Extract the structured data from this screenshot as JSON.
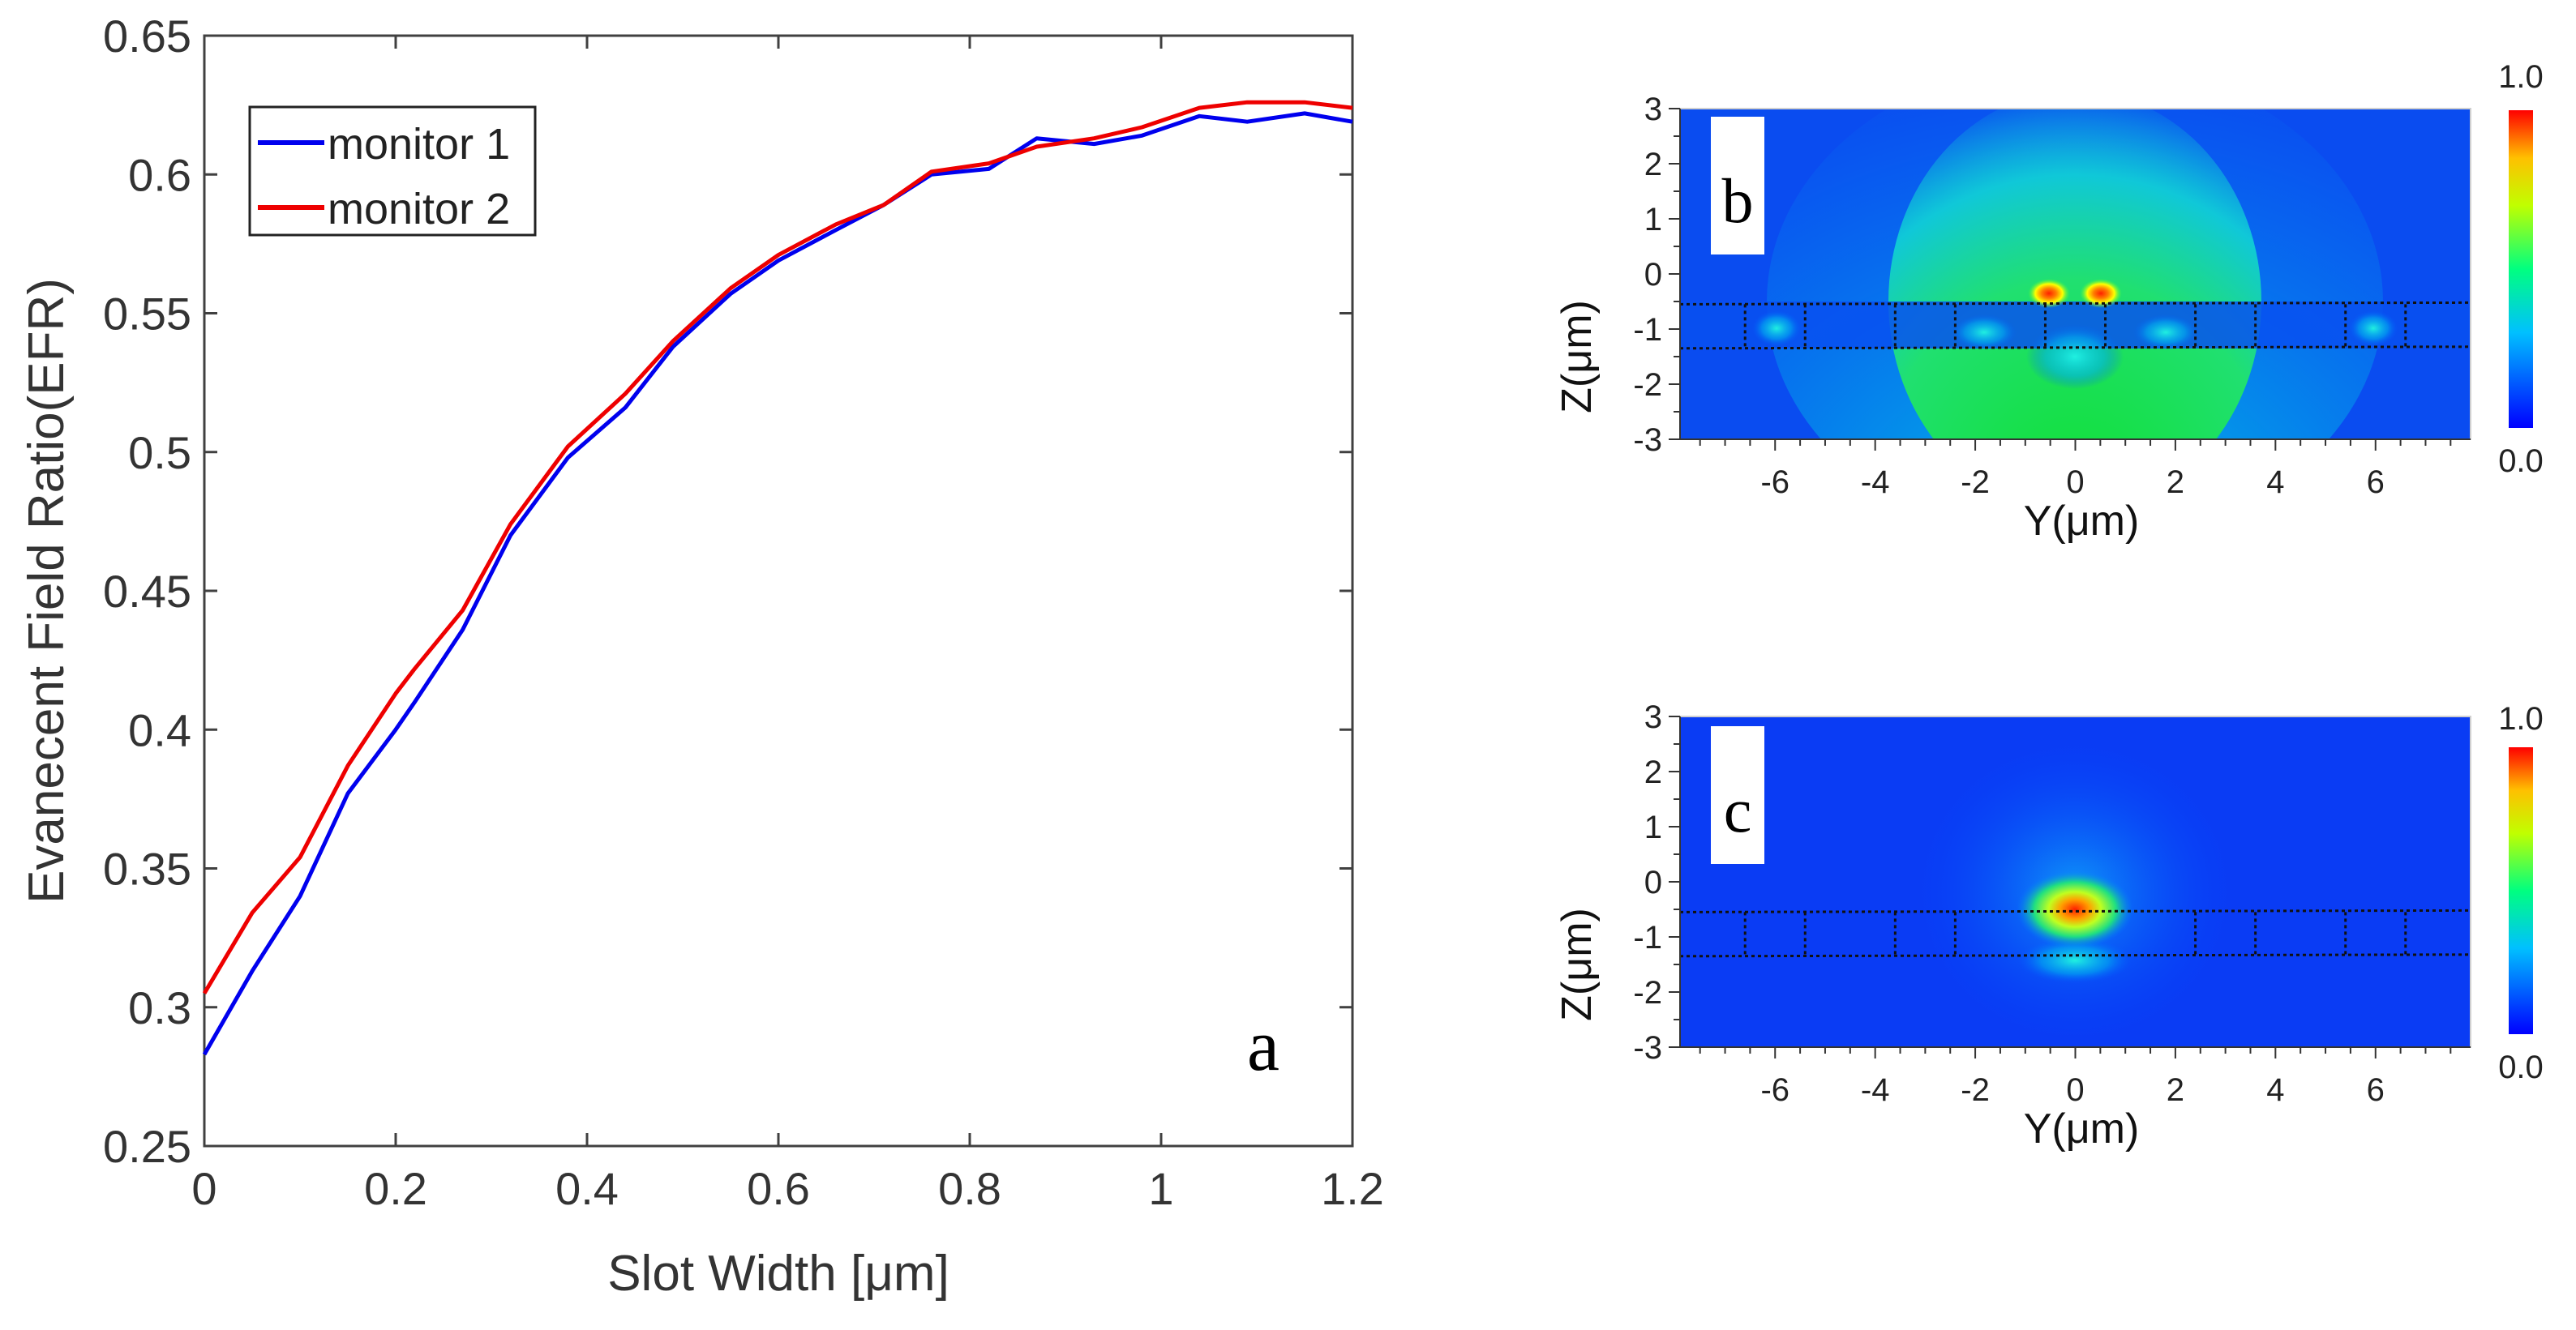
{
  "chart_data": [
    {
      "id": "a",
      "type": "line",
      "panel_label": "a",
      "title": "",
      "xlabel": "Slot Width [μm]",
      "ylabel": "Evanecent Field Ratio(EFR)",
      "xlim": [
        0,
        1.2
      ],
      "ylim": [
        0.25,
        0.65
      ],
      "xticks": [
        0,
        0.2,
        0.4,
        0.6,
        0.8,
        1,
        1.2
      ],
      "xtick_labels": [
        "0",
        "0.2",
        "0.4",
        "0.6",
        "0.8",
        "1",
        "1.2"
      ],
      "yticks": [
        0.25,
        0.3,
        0.35,
        0.4,
        0.45,
        0.5,
        0.55,
        0.6,
        0.65
      ],
      "ytick_labels": [
        "0.25",
        "0.3",
        "0.35",
        "0.4",
        "0.45",
        "0.5",
        "0.55",
        "0.6",
        "0.65"
      ],
      "grid": false,
      "legend_position": "top-left",
      "series": [
        {
          "name": "monitor 1",
          "color": "#0000ee",
          "x": [
            0,
            0.05,
            0.1,
            0.15,
            0.2,
            0.22,
            0.27,
            0.32,
            0.38,
            0.44,
            0.49,
            0.55,
            0.6,
            0.66,
            0.71,
            0.76,
            0.82,
            0.87,
            0.93,
            0.98,
            1.04,
            1.09,
            1.15,
            1.2
          ],
          "y": [
            0.283,
            0.313,
            0.34,
            0.377,
            0.4,
            0.41,
            0.436,
            0.47,
            0.498,
            0.516,
            0.538,
            0.557,
            0.569,
            0.58,
            0.589,
            0.6,
            0.602,
            0.613,
            0.611,
            0.614,
            0.621,
            0.619,
            0.622,
            0.619
          ]
        },
        {
          "name": "monitor 2",
          "color": "#ee0000",
          "x": [
            0,
            0.05,
            0.1,
            0.15,
            0.2,
            0.22,
            0.27,
            0.32,
            0.38,
            0.44,
            0.49,
            0.55,
            0.6,
            0.66,
            0.71,
            0.76,
            0.82,
            0.87,
            0.93,
            0.98,
            1.04,
            1.09,
            1.15,
            1.2
          ],
          "y": [
            0.305,
            0.334,
            0.354,
            0.387,
            0.413,
            0.422,
            0.443,
            0.474,
            0.502,
            0.521,
            0.54,
            0.559,
            0.571,
            0.582,
            0.589,
            0.601,
            0.604,
            0.61,
            0.613,
            0.617,
            0.624,
            0.626,
            0.626,
            0.624
          ]
        }
      ]
    },
    {
      "id": "b",
      "type": "heatmap",
      "panel_label": "b",
      "xlabel": "Y(μm)",
      "ylabel": "Z(μm)",
      "xlim": [
        -7.9,
        7.9
      ],
      "ylim": [
        -3,
        3
      ],
      "xticks": [
        -6,
        -4,
        -2,
        0,
        2,
        4,
        6
      ],
      "xtick_labels": [
        "-6",
        "-4",
        "-2",
        "0",
        "2",
        "4",
        "6"
      ],
      "yticks": [
        -3,
        -2,
        -1,
        0,
        1,
        2,
        3
      ],
      "ytick_labels": [
        "-3",
        "-2",
        "-1",
        "0",
        "1",
        "2",
        "3"
      ],
      "colorbar_max_label": "1.0",
      "colorbar_min_label": "0.0",
      "colorbar_colors": [
        "#0000ff",
        "#00ffff",
        "#00ff00",
        "#ffff00",
        "#ff0000"
      ],
      "waveguide_top_z": -0.55,
      "waveguide_bottom_z": -1.35,
      "slot_edges_y": [
        -6.6,
        -5.4,
        -3.6,
        -2.4,
        -0.6,
        0.6,
        2.4,
        3.6,
        5.4,
        6.6
      ],
      "description": "field spreads broadly into upper cladding"
    },
    {
      "id": "c",
      "type": "heatmap",
      "panel_label": "c",
      "xlabel": "Y(μm)",
      "ylabel": "Z(μm)",
      "xlim": [
        -7.9,
        7.9
      ],
      "ylim": [
        -3,
        3
      ],
      "xticks": [
        -6,
        -4,
        -2,
        0,
        2,
        4,
        6
      ],
      "xtick_labels": [
        "-6",
        "-4",
        "-2",
        "0",
        "2",
        "4",
        "6"
      ],
      "yticks": [
        -3,
        -2,
        -1,
        0,
        1,
        2,
        3
      ],
      "ytick_labels": [
        "-3",
        "-2",
        "-1",
        "0",
        "1",
        "2",
        "3"
      ],
      "colorbar_max_label": "1.0",
      "colorbar_min_label": "0.0",
      "colorbar_colors": [
        "#0000ff",
        "#00ffff",
        "#00ff00",
        "#ffff00",
        "#ff0000"
      ],
      "waveguide_top_z": -0.55,
      "waveguide_bottom_z": -1.35,
      "slot_edges_y": [
        -6.6,
        -5.4,
        -3.6,
        -2.4,
        2.4,
        3.6,
        5.4,
        6.6
      ],
      "description": "field localized near center"
    }
  ]
}
